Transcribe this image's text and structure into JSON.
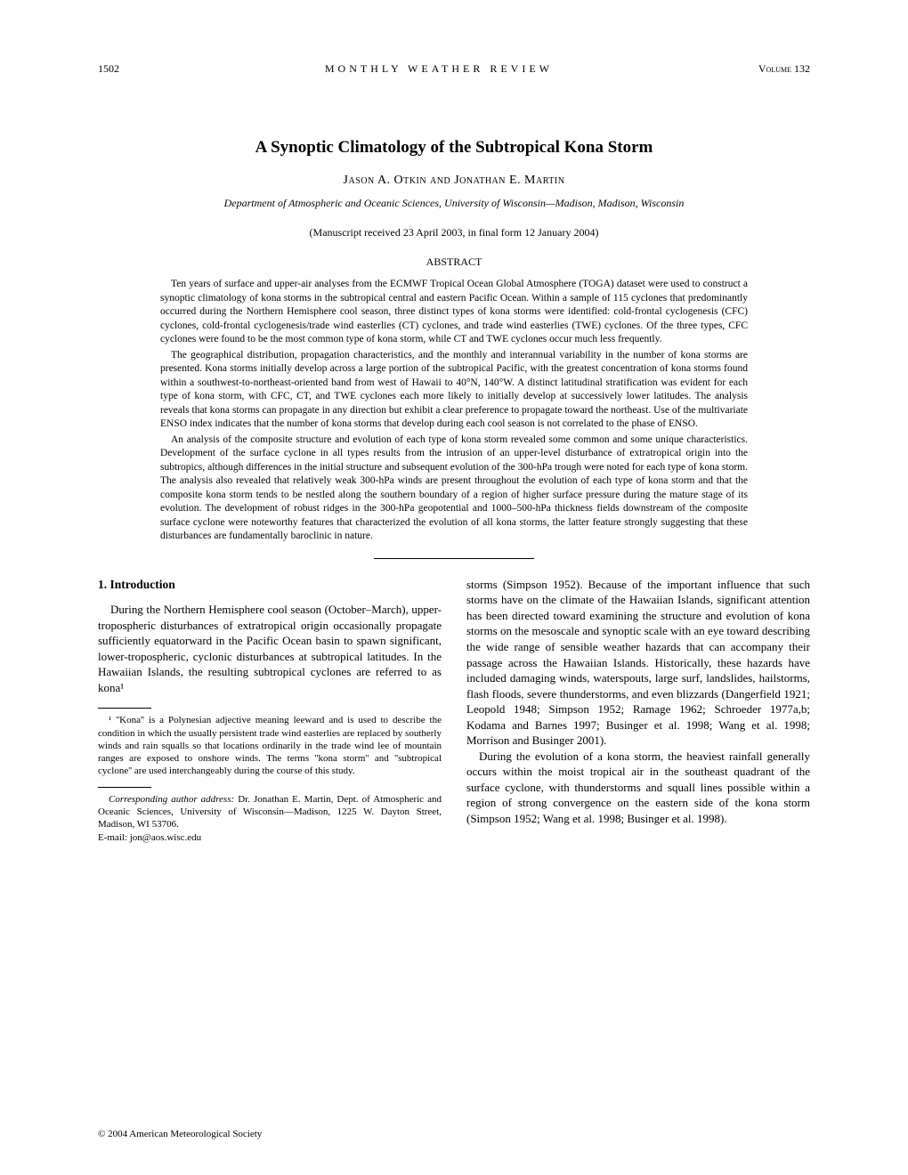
{
  "header": {
    "page_number": "1502",
    "journal_title": "MONTHLY WEATHER REVIEW",
    "volume": "Volume 132"
  },
  "title": "A Synoptic Climatology of the Subtropical Kona Storm",
  "authors": "Jason A. Otkin and Jonathan E. Martin",
  "affiliation": "Department of Atmospheric and Oceanic Sciences, University of Wisconsin—Madison, Madison, Wisconsin",
  "manuscript_info": "(Manuscript received 23 April 2003, in final form 12 January 2004)",
  "abstract_label": "ABSTRACT",
  "abstract": {
    "p1": "Ten years of surface and upper-air analyses from the ECMWF Tropical Ocean Global Atmosphere (TOGA) dataset were used to construct a synoptic climatology of kona storms in the subtropical central and eastern Pacific Ocean. Within a sample of 115 cyclones that predominantly occurred during the Northern Hemisphere cool season, three distinct types of kona storms were identified: cold-frontal cyclogenesis (CFC) cyclones, cold-frontal cyclogenesis/trade wind easterlies (CT) cyclones, and trade wind easterlies (TWE) cyclones. Of the three types, CFC cyclones were found to be the most common type of kona storm, while CT and TWE cyclones occur much less frequently.",
    "p2": "The geographical distribution, propagation characteristics, and the monthly and interannual variability in the number of kona storms are presented. Kona storms initially develop across a large portion of the subtropical Pacific, with the greatest concentration of kona storms found within a southwest-to-northeast-oriented band from west of Hawaii to 40°N, 140°W. A distinct latitudinal stratification was evident for each type of kona storm, with CFC, CT, and TWE cyclones each more likely to initially develop at successively lower latitudes. The analysis reveals that kona storms can propagate in any direction but exhibit a clear preference to propagate toward the northeast. Use of the multivariate ENSO index indicates that the number of kona storms that develop during each cool season is not correlated to the phase of ENSO.",
    "p3": "An analysis of the composite structure and evolution of each type of kona storm revealed some common and some unique characteristics. Development of the surface cyclone in all types results from the intrusion of an upper-level disturbance of extratropical origin into the subtropics, although differences in the initial structure and subsequent evolution of the 300-hPa trough were noted for each type of kona storm. The analysis also revealed that relatively weak 300-hPa winds are present throughout the evolution of each type of kona storm and that the composite kona storm tends to be nestled along the southern boundary of a region of higher surface pressure during the mature stage of its evolution. The development of robust ridges in the 300-hPa geopotential and 1000–500-hPa thickness fields downstream of the composite surface cyclone were noteworthy features that characterized the evolution of all kona storms, the latter feature strongly suggesting that these disturbances are fundamentally baroclinic in nature."
  },
  "section1": {
    "heading": "1. Introduction",
    "col1_p1": "During the Northern Hemisphere cool season (October–March), upper-tropospheric disturbances of extratropical origin occasionally propagate sufficiently equatorward in the Pacific Ocean basin to spawn significant, lower-tropospheric, cyclonic disturbances at subtropical latitudes. In the Hawaiian Islands, the resulting subtropical cyclones are referred to as kona¹",
    "col2_p1": "storms (Simpson 1952). Because of the important influence that such storms have on the climate of the Hawaiian Islands, significant attention has been directed toward examining the structure and evolution of kona storms on the mesoscale and synoptic scale with an eye toward describing the wide range of sensible weather hazards that can accompany their passage across the Hawaiian Islands. Historically, these hazards have included damaging winds, waterspouts, large surf, landslides, hailstorms, flash floods, severe thunderstorms, and even blizzards (Dangerfield 1921; Leopold 1948; Simpson 1952; Ramage 1962; Schroeder 1977a,b; Kodama and Barnes 1997; Businger et al. 1998; Wang et al. 1998; Morrison and Businger 2001).",
    "col2_p2": "During the evolution of a kona storm, the heaviest rainfall generally occurs within the moist tropical air in the southeast quadrant of the surface cyclone, with thunderstorms and squall lines possible within a region of strong convergence on the eastern side of the kona storm (Simpson 1952; Wang et al. 1998; Businger et al. 1998)."
  },
  "footnote1": "¹ ''Kona'' is a Polynesian adjective meaning leeward and is used to describe the condition in which the usually persistent trade wind easterlies are replaced by southerly winds and rain squalls so that locations ordinarily in the trade wind lee of mountain ranges are exposed to onshore winds. The terms ''kona storm'' and ''subtropical cyclone'' are used interchangeably during the course of this study.",
  "corresponding": {
    "line1": "Corresponding author address: Dr. Jonathan E. Martin, Dept. of Atmospheric and Oceanic Sciences, University of Wisconsin—Madison, 1225 W. Dayton Street, Madison, WI 53706.",
    "line2": "E-mail: jon@aos.wisc.edu"
  },
  "copyright": "© 2004 American Meteorological Society"
}
